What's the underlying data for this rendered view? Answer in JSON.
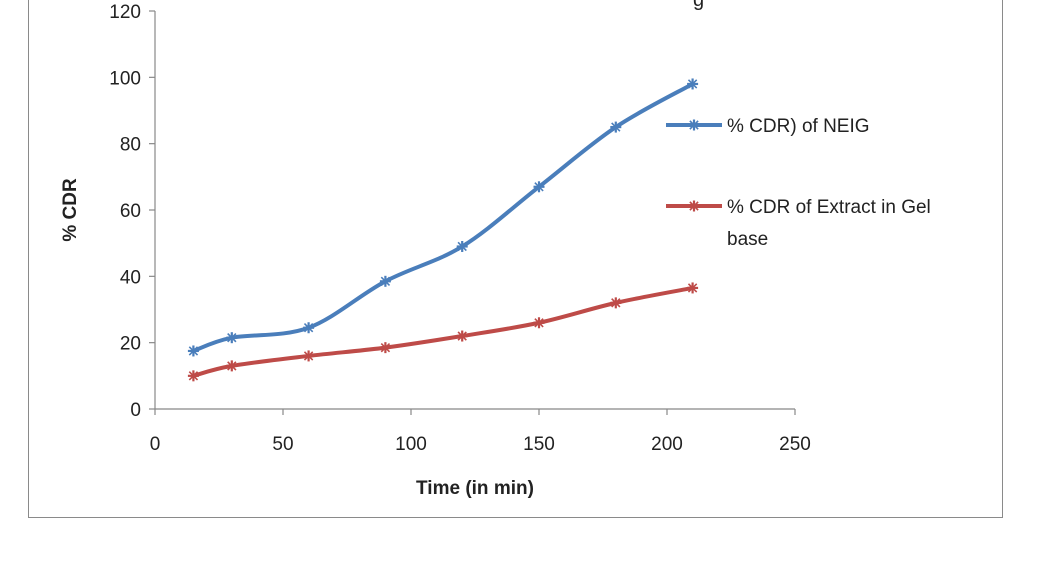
{
  "chart_data": {
    "type": "line",
    "title": "g",
    "xlabel": "Time (in min)",
    "ylabel": "% CDR",
    "xlim": [
      0,
      250
    ],
    "ylim": [
      0,
      120
    ],
    "xticks": [
      0,
      50,
      100,
      150,
      200,
      250
    ],
    "yticks": [
      0,
      20,
      40,
      60,
      80,
      100,
      120
    ],
    "grid": false,
    "legend_position": "right",
    "x": [
      15,
      30,
      60,
      90,
      120,
      150,
      180,
      210
    ],
    "series": [
      {
        "name": "% CDR) of NEIG",
        "name_lines": [
          "% CDR) of NEIG"
        ],
        "color": "#4a7ebb",
        "values": [
          17.5,
          21.5,
          24.5,
          38.5,
          49,
          67,
          85,
          98
        ]
      },
      {
        "name": "% CDR of Extract in Gel base",
        "name_lines": [
          "% CDR of Extract in Gel",
          "base"
        ],
        "color": "#be4b48",
        "values": [
          10,
          13,
          16,
          18.5,
          22,
          26,
          32,
          36.5
        ]
      }
    ]
  }
}
